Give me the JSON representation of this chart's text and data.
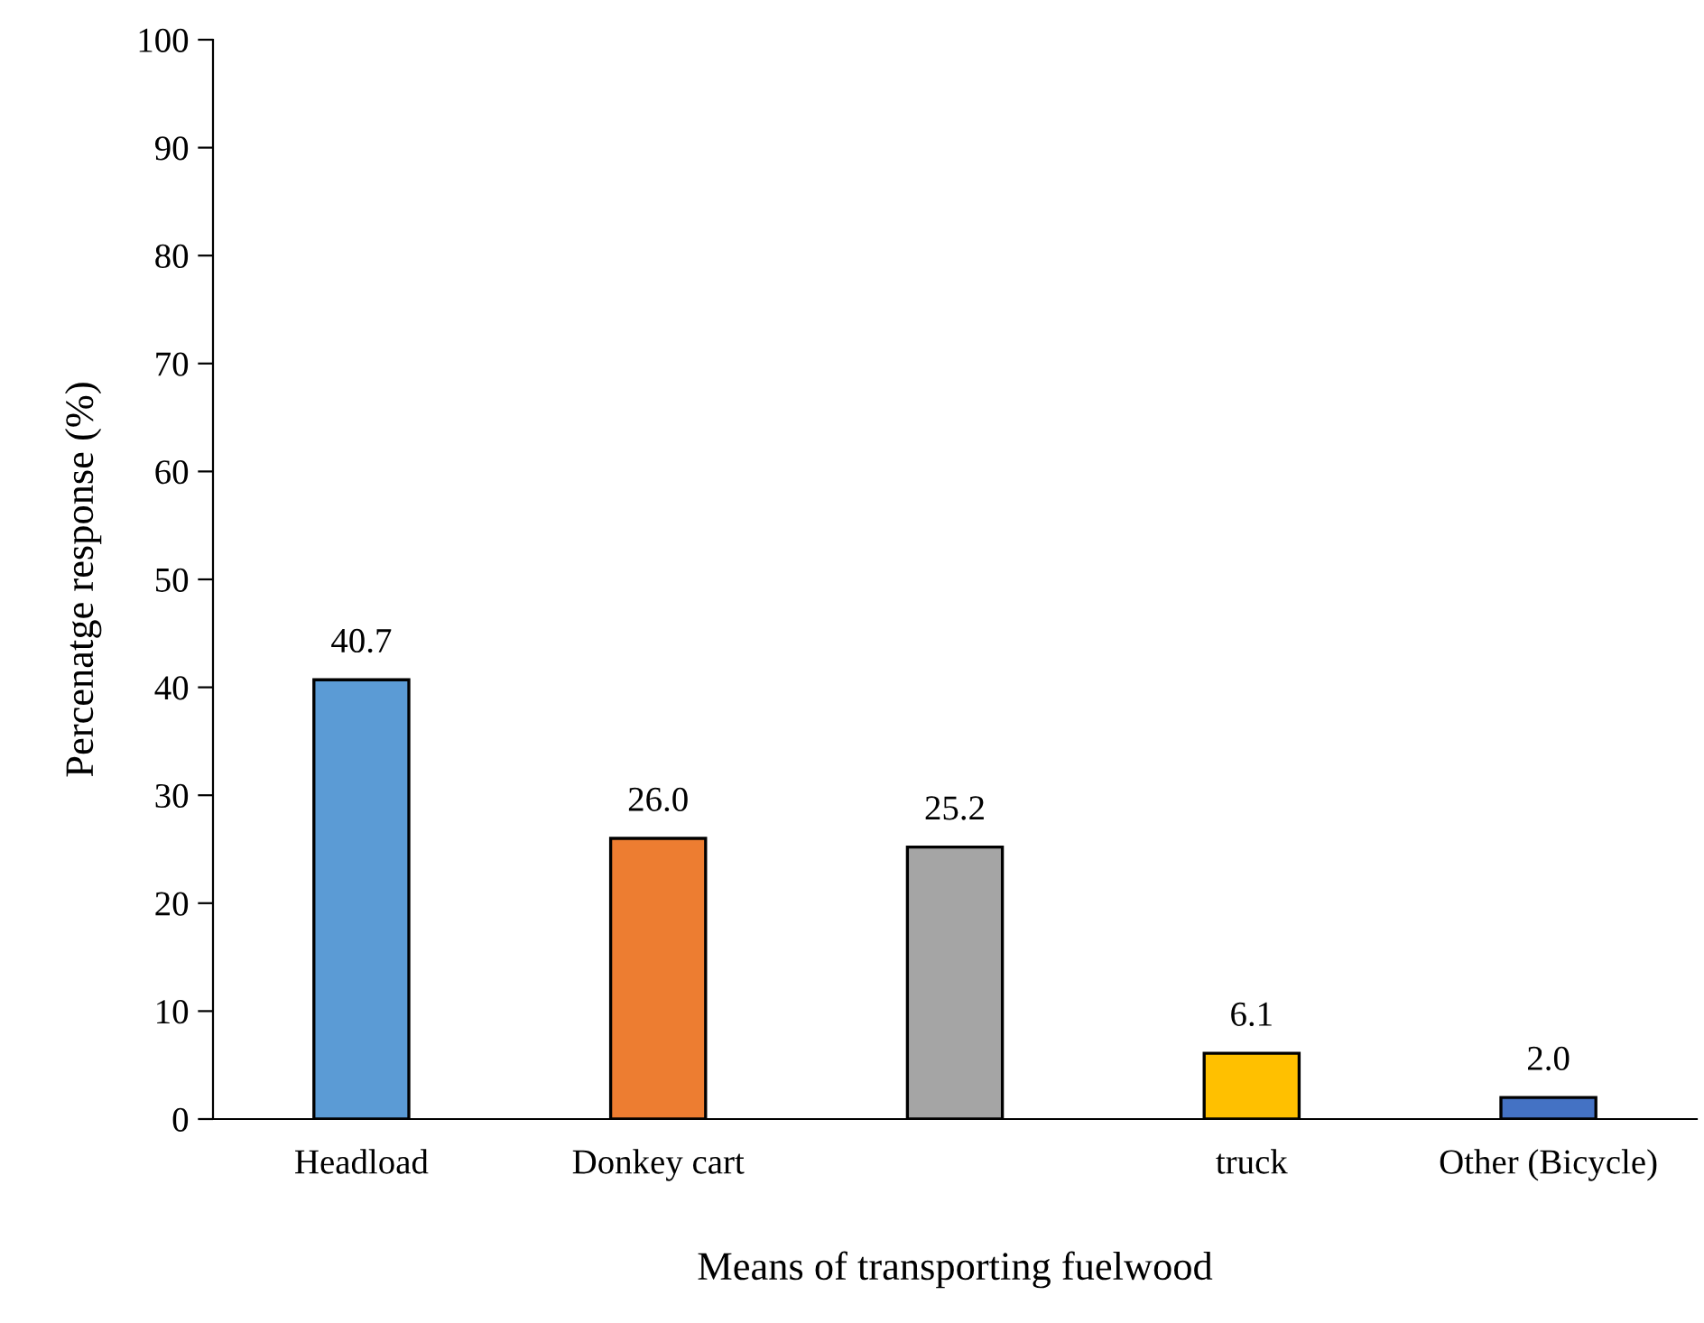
{
  "chart_data": {
    "type": "bar",
    "xlabel": "Means of transporting fuelwood",
    "ylabel": "Percenatge response (%)",
    "categories": [
      "Headload",
      "Donkey cart",
      null,
      "truck",
      "Other (Bicycle)"
    ],
    "values": [
      40.7,
      26.0,
      25.2,
      6.1,
      2.0
    ],
    "value_labels": [
      "40.7",
      "26.0",
      "25.2",
      "6.1",
      "2.0"
    ],
    "colors": [
      "#5b9bd5",
      "#ed7d31",
      "#a5a5a5",
      "#ffc000",
      "#4472c4"
    ],
    "ylim": [
      0,
      100
    ],
    "yticks": [
      0,
      10,
      20,
      30,
      40,
      50,
      60,
      70,
      80,
      90,
      100
    ],
    "grid": false,
    "legend": false
  }
}
